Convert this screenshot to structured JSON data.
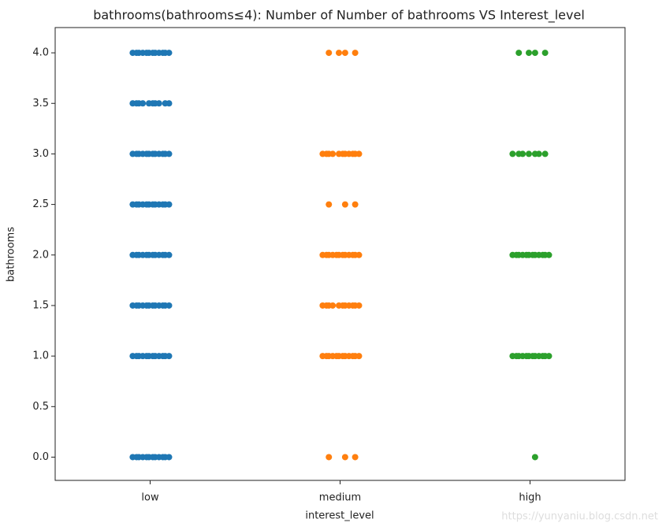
{
  "chart_data": {
    "type": "strip",
    "title": "bathrooms(bathrooms≤4): Number of Number of bathrooms VS Interest_level",
    "x_label": "interest_level",
    "y_label": "bathrooms",
    "watermark": "https://yunyaniu.blog.csdn.net",
    "categories": [
      "low",
      "medium",
      "high"
    ],
    "series": [
      {
        "color": "#1f77b4",
        "values": [
          4,
          4,
          4,
          4,
          4,
          4,
          4,
          4,
          4,
          4,
          4,
          4,
          3.5,
          3.5,
          3.5,
          3.5,
          3.5,
          3.5,
          3.5,
          3.5,
          3.5,
          3.5,
          3,
          3,
          3,
          3,
          3,
          3,
          3,
          3,
          3,
          3,
          3,
          3,
          2.5,
          2.5,
          2.5,
          2.5,
          2.5,
          2.5,
          2.5,
          2.5,
          2.5,
          2.5,
          2.5,
          2.5,
          2,
          2,
          2,
          2,
          2,
          2,
          2,
          2,
          2,
          2,
          2,
          2,
          1.5,
          1.5,
          1.5,
          1.5,
          1.5,
          1.5,
          1.5,
          1.5,
          1.5,
          1.5,
          1.5,
          1.5,
          1,
          1,
          1,
          1,
          1,
          1,
          1,
          1,
          1,
          1,
          1,
          1,
          0,
          0,
          0,
          0,
          0,
          0,
          0,
          0,
          0,
          0,
          0,
          0
        ]
      },
      {
        "color": "#ff7f0e",
        "values": [
          4,
          4,
          4,
          4,
          3,
          3,
          3,
          3,
          3,
          3,
          3,
          3,
          3,
          3,
          3,
          2.5,
          2.5,
          2.5,
          2,
          2,
          2,
          2,
          2,
          2,
          2,
          2,
          2,
          2,
          2,
          2,
          1.5,
          1.5,
          1.5,
          1.5,
          1.5,
          1.5,
          1.5,
          1.5,
          1.5,
          1.5,
          1.5,
          1,
          1,
          1,
          1,
          1,
          1,
          1,
          1,
          1,
          1,
          1,
          1,
          0,
          0,
          0
        ]
      },
      {
        "color": "#2ca02c",
        "values": [
          4,
          4,
          4,
          4,
          3,
          3,
          3,
          3,
          3,
          3,
          3,
          2,
          2,
          2,
          2,
          2,
          2,
          2,
          2,
          2,
          2,
          2,
          2,
          1,
          1,
          1,
          1,
          1,
          1,
          1,
          1,
          1,
          1,
          1,
          1,
          0
        ]
      }
    ],
    "ylim": [
      -0.23,
      4.25
    ],
    "yticks": [
      {
        "value": 0,
        "label": "0.0"
      },
      0.5,
      {
        "value": 1,
        "label": "1.0"
      },
      1.5,
      {
        "value": 2,
        "label": "2.0"
      },
      2.5,
      {
        "value": 3,
        "label": "3.0"
      },
      3.5,
      {
        "value": 4,
        "label": "4.0"
      }
    ]
  }
}
